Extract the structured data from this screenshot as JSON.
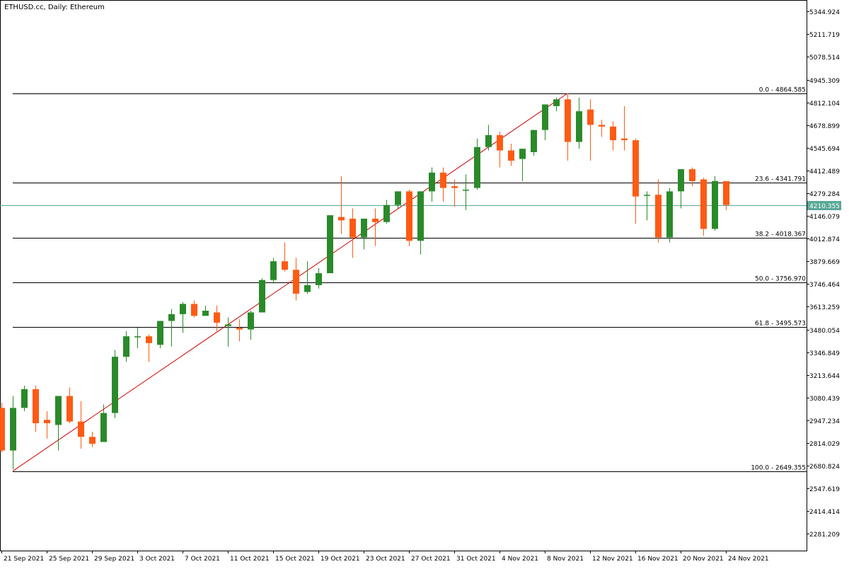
{
  "header": {
    "title": "ETHUSD.cc, Daily:  Ethereum"
  },
  "colors": {
    "bull": "#2a8a2a",
    "bear": "#ff5a14",
    "grid_line": "#000000",
    "trend_line": "#cc0000",
    "price_line": "#5aa898",
    "price_label_bg": "#5aa898",
    "price_label_text": "#ffffff"
  },
  "chart_data": {
    "type": "candlestick",
    "title": "ETHUSD.cc, Daily:  Ethereum",
    "ylim": [
      2183.0,
      5400.0
    ],
    "y_ticks": [
      "5344.924",
      "5211.719",
      "5078.514",
      "4945.309",
      "4812.104",
      "4678.899",
      "4545.694",
      "4412.489",
      "4279.284",
      "4146.079",
      "4012.874",
      "3879.669",
      "3746.464",
      "3613.259",
      "3480.054",
      "3346.849",
      "3213.644",
      "3080.439",
      "2947.234",
      "2814.029",
      "2680.824",
      "2547.619",
      "2414.414",
      "2281.209"
    ],
    "x_labels": [
      {
        "index": 0,
        "text": "21 Sep 2021"
      },
      {
        "index": 4,
        "text": "25 Sep 2021"
      },
      {
        "index": 8,
        "text": "29 Sep 2021"
      },
      {
        "index": 12,
        "text": "3 Oct 2021"
      },
      {
        "index": 16,
        "text": "7 Oct 2021"
      },
      {
        "index": 20,
        "text": "11 Oct 2021"
      },
      {
        "index": 24,
        "text": "15 Oct 2021"
      },
      {
        "index": 28,
        "text": "19 Oct 2021"
      },
      {
        "index": 32,
        "text": "23 Oct 2021"
      },
      {
        "index": 36,
        "text": "27 Oct 2021"
      },
      {
        "index": 40,
        "text": "31 Oct 2021"
      },
      {
        "index": 44,
        "text": "4 Nov 2021"
      },
      {
        "index": 48,
        "text": "8 Nov 2021"
      },
      {
        "index": 52,
        "text": "12 Nov 2021"
      },
      {
        "index": 56,
        "text": "16 Nov 2021"
      },
      {
        "index": 60,
        "text": "20 Nov 2021"
      },
      {
        "index": 64,
        "text": "24 Nov 2021"
      }
    ],
    "first_index": -1,
    "last_index": 64,
    "candles": [
      {
        "i": -1,
        "o": 3020,
        "h": 3050,
        "l": 2760,
        "c": 2770
      },
      {
        "i": 0,
        "o": 2770,
        "h": 3090,
        "l": 2660,
        "c": 3020
      },
      {
        "i": 1,
        "o": 3020,
        "h": 3150,
        "l": 3000,
        "c": 3130
      },
      {
        "i": 2,
        "o": 3130,
        "h": 3150,
        "l": 2880,
        "c": 2930
      },
      {
        "i": 3,
        "o": 2950,
        "h": 3000,
        "l": 2840,
        "c": 2930
      },
      {
        "i": 4,
        "o": 2920,
        "h": 3090,
        "l": 2770,
        "c": 3090
      },
      {
        "i": 5,
        "o": 3090,
        "h": 3140,
        "l": 2930,
        "c": 2940
      },
      {
        "i": 6,
        "o": 2940,
        "h": 3060,
        "l": 2780,
        "c": 2850
      },
      {
        "i": 7,
        "o": 2850,
        "h": 2880,
        "l": 2790,
        "c": 2810
      },
      {
        "i": 8,
        "o": 2820,
        "h": 3040,
        "l": 2820,
        "c": 2990
      },
      {
        "i": 9,
        "o": 2990,
        "h": 3360,
        "l": 2960,
        "c": 3320
      },
      {
        "i": 10,
        "o": 3320,
        "h": 3470,
        "l": 3290,
        "c": 3440
      },
      {
        "i": 11,
        "o": 3440,
        "h": 3490,
        "l": 3370,
        "c": 3440
      },
      {
        "i": 12,
        "o": 3440,
        "h": 3450,
        "l": 3290,
        "c": 3400
      },
      {
        "i": 13,
        "o": 3390,
        "h": 3520,
        "l": 3370,
        "c": 3530
      },
      {
        "i": 14,
        "o": 3530,
        "h": 3600,
        "l": 3380,
        "c": 3570
      },
      {
        "i": 15,
        "o": 3570,
        "h": 3640,
        "l": 3460,
        "c": 3630
      },
      {
        "i": 16,
        "o": 3630,
        "h": 3650,
        "l": 3550,
        "c": 3560
      },
      {
        "i": 17,
        "o": 3560,
        "h": 3620,
        "l": 3560,
        "c": 3590
      },
      {
        "i": 18,
        "o": 3580,
        "h": 3620,
        "l": 3470,
        "c": 3520
      },
      {
        "i": 19,
        "o": 3500,
        "h": 3550,
        "l": 3380,
        "c": 3510
      },
      {
        "i": 20,
        "o": 3490,
        "h": 3540,
        "l": 3410,
        "c": 3480
      },
      {
        "i": 21,
        "o": 3480,
        "h": 3590,
        "l": 3420,
        "c": 3580
      },
      {
        "i": 22,
        "o": 3580,
        "h": 3780,
        "l": 3580,
        "c": 3770
      },
      {
        "i": 23,
        "o": 3770,
        "h": 3900,
        "l": 3750,
        "c": 3880
      },
      {
        "i": 24,
        "o": 3880,
        "h": 3990,
        "l": 3820,
        "c": 3830
      },
      {
        "i": 25,
        "o": 3830,
        "h": 3900,
        "l": 3650,
        "c": 3690
      },
      {
        "i": 26,
        "o": 3700,
        "h": 3880,
        "l": 3690,
        "c": 3740
      },
      {
        "i": 27,
        "o": 3740,
        "h": 3840,
        "l": 3720,
        "c": 3810
      },
      {
        "i": 28,
        "o": 3810,
        "h": 4150,
        "l": 3810,
        "c": 4150
      },
      {
        "i": 29,
        "o": 4140,
        "h": 4380,
        "l": 4040,
        "c": 4120
      },
      {
        "i": 30,
        "o": 4130,
        "h": 4190,
        "l": 3900,
        "c": 4020
      },
      {
        "i": 31,
        "o": 4020,
        "h": 4120,
        "l": 3950,
        "c": 4130
      },
      {
        "i": 32,
        "o": 4130,
        "h": 4190,
        "l": 3970,
        "c": 4110
      },
      {
        "i": 33,
        "o": 4110,
        "h": 4240,
        "l": 4100,
        "c": 4210
      },
      {
        "i": 34,
        "o": 4210,
        "h": 4290,
        "l": 4190,
        "c": 4290
      },
      {
        "i": 35,
        "o": 4290,
        "h": 4300,
        "l": 3970,
        "c": 4000
      },
      {
        "i": 36,
        "o": 4000,
        "h": 4290,
        "l": 3920,
        "c": 4290
      },
      {
        "i": 37,
        "o": 4290,
        "h": 4430,
        "l": 4230,
        "c": 4400
      },
      {
        "i": 38,
        "o": 4400,
        "h": 4430,
        "l": 4230,
        "c": 4310
      },
      {
        "i": 39,
        "o": 4320,
        "h": 4360,
        "l": 4200,
        "c": 4310
      },
      {
        "i": 40,
        "o": 4300,
        "h": 4390,
        "l": 4180,
        "c": 4300
      },
      {
        "i": 41,
        "o": 4310,
        "h": 4600,
        "l": 4300,
        "c": 4550
      },
      {
        "i": 42,
        "o": 4550,
        "h": 4680,
        "l": 4530,
        "c": 4620
      },
      {
        "i": 43,
        "o": 4620,
        "h": 4640,
        "l": 4430,
        "c": 4530
      },
      {
        "i": 44,
        "o": 4530,
        "h": 4570,
        "l": 4440,
        "c": 4470
      },
      {
        "i": 45,
        "o": 4480,
        "h": 4540,
        "l": 4350,
        "c": 4540
      },
      {
        "i": 46,
        "o": 4520,
        "h": 4650,
        "l": 4500,
        "c": 4650
      },
      {
        "i": 47,
        "o": 4650,
        "h": 4800,
        "l": 4590,
        "c": 4800
      },
      {
        "i": 48,
        "o": 4790,
        "h": 4840,
        "l": 4760,
        "c": 4830
      },
      {
        "i": 49,
        "o": 4830,
        "h": 4865,
        "l": 4470,
        "c": 4580
      },
      {
        "i": 50,
        "o": 4580,
        "h": 4840,
        "l": 4540,
        "c": 4760
      },
      {
        "i": 51,
        "o": 4770,
        "h": 4830,
        "l": 4470,
        "c": 4680
      },
      {
        "i": 52,
        "o": 4680,
        "h": 4710,
        "l": 4610,
        "c": 4670
      },
      {
        "i": 53,
        "o": 4670,
        "h": 4700,
        "l": 4530,
        "c": 4590
      },
      {
        "i": 54,
        "o": 4600,
        "h": 4790,
        "l": 4530,
        "c": 4590
      },
      {
        "i": 55,
        "o": 4590,
        "h": 4600,
        "l": 4100,
        "c": 4260
      },
      {
        "i": 56,
        "o": 4270,
        "h": 4290,
        "l": 4120,
        "c": 4270
      },
      {
        "i": 57,
        "o": 4270,
        "h": 4360,
        "l": 3990,
        "c": 4020
      },
      {
        "i": 58,
        "o": 4020,
        "h": 4310,
        "l": 3990,
        "c": 4290
      },
      {
        "i": 59,
        "o": 4290,
        "h": 4420,
        "l": 4190,
        "c": 4420
      },
      {
        "i": 60,
        "o": 4420,
        "h": 4430,
        "l": 4320,
        "c": 4350
      },
      {
        "i": 61,
        "o": 4360,
        "h": 4370,
        "l": 4030,
        "c": 4070
      },
      {
        "i": 62,
        "o": 4070,
        "h": 4380,
        "l": 4060,
        "c": 4350
      },
      {
        "i": 63,
        "o": 4350,
        "h": 4350,
        "l": 4180,
        "c": 4210
      }
    ],
    "fibonacci": {
      "levels": [
        {
          "label": "0.0 - 4864.585",
          "value": 4864.585
        },
        {
          "label": "23.6 - 4341.791",
          "value": 4341.791
        },
        {
          "label": "38.2 - 4018.367",
          "value": 4018.367
        },
        {
          "label": "50.0 - 3756.970",
          "value": 3756.97
        },
        {
          "label": "61.8 - 3495.573",
          "value": 3495.573
        },
        {
          "label": "100.0 - 2649.355",
          "value": 2649.355
        }
      ],
      "trend_start": {
        "i": 0,
        "value": 2649.355
      },
      "trend_end": {
        "i": 49,
        "value": 4864.585
      }
    },
    "current_price": {
      "value": 4210.355,
      "label": "4210.355"
    }
  }
}
